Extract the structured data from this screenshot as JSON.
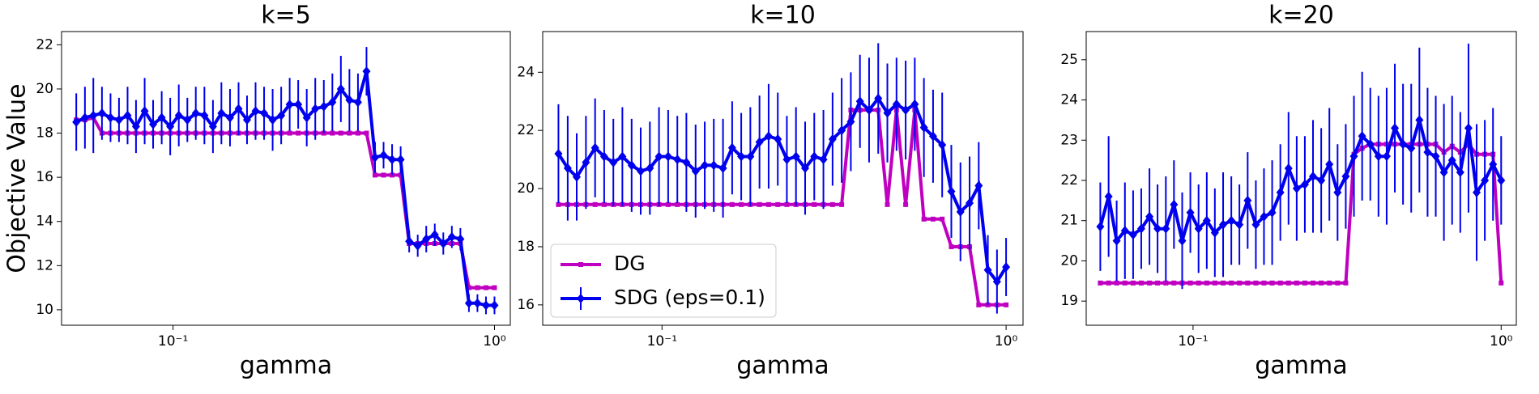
{
  "chart_data": [
    {
      "type": "line",
      "title": "k=5",
      "xlabel": "gamma",
      "ylabel": "Objective Value",
      "xscale": "log",
      "x": [
        0.05,
        0.0532,
        0.0565,
        0.0601,
        0.0639,
        0.0679,
        0.0722,
        0.0767,
        0.0816,
        0.0867,
        0.0922,
        0.098,
        0.1042,
        0.1108,
        0.1177,
        0.1252,
        0.1331,
        0.1414,
        0.1504,
        0.1599,
        0.1699,
        0.1806,
        0.192,
        0.2041,
        0.217,
        0.2306,
        0.2451,
        0.2606,
        0.277,
        0.2945,
        0.3131,
        0.3328,
        0.3538,
        0.3761,
        0.3998,
        0.425,
        0.4518,
        0.4803,
        0.5106,
        0.5428,
        0.577,
        0.6134,
        0.652,
        0.6931,
        0.7368,
        0.7833,
        0.8327,
        0.8851,
        0.9409,
        1.0
      ],
      "xlim": [
        0.045,
        1.12
      ],
      "xticks": [
        {
          "value": 0.1,
          "label": "10⁻¹"
        },
        {
          "value": 1,
          "label": "10⁰"
        }
      ],
      "ylim": [
        9.3,
        22.6
      ],
      "yticks": [
        10,
        12,
        14,
        16,
        18,
        20,
        22
      ],
      "series": [
        {
          "color": "#c000c0",
          "marker": "square",
          "values": [
            18.6,
            18.6,
            18.7,
            18.0,
            18.0,
            18.0,
            18.0,
            18.0,
            18.0,
            18.0,
            18.0,
            18.0,
            18.0,
            18.0,
            18.0,
            18.0,
            18.0,
            18.0,
            18.0,
            18.0,
            18.0,
            18.0,
            18.0,
            18.0,
            18.0,
            18.0,
            18.0,
            18.0,
            18.0,
            18.0,
            18.0,
            18.0,
            18.0,
            18.0,
            18.0,
            16.1,
            16.1,
            16.1,
            16.1,
            13.0,
            13.0,
            13.0,
            13.0,
            13.0,
            13.0,
            13.0,
            11.0,
            11.0,
            11.0,
            11.0
          ]
        },
        {
          "color": "#0000ee",
          "marker": "diamond",
          "values": [
            18.5,
            18.7,
            18.8,
            18.9,
            18.7,
            18.6,
            18.8,
            18.3,
            19.0,
            18.4,
            18.7,
            18.3,
            18.8,
            18.6,
            18.9,
            18.8,
            18.3,
            18.9,
            18.7,
            19.1,
            18.6,
            19.0,
            18.9,
            18.6,
            18.8,
            19.3,
            19.3,
            18.7,
            19.1,
            19.2,
            19.4,
            20.0,
            19.5,
            19.4,
            20.8,
            16.9,
            17.0,
            16.8,
            16.8,
            13.1,
            12.9,
            13.2,
            13.4,
            13.0,
            13.3,
            13.2,
            10.3,
            10.3,
            10.2,
            10.2
          ],
          "errors": [
            1.3,
            1.4,
            1.7,
            1.2,
            1.1,
            1.0,
            1.3,
            1.2,
            1.5,
            1.1,
            1.2,
            1.3,
            1.4,
            1.0,
            1.2,
            1.3,
            1.2,
            1.4,
            1.3,
            1.2,
            1.1,
            1.3,
            1.2,
            1.4,
            1.3,
            1.2,
            1.1,
            1.3,
            1.4,
            1.2,
            1.3,
            1.5,
            1.4,
            1.3,
            1.1,
            0.7,
            0.6,
            0.7,
            0.6,
            0.5,
            0.5,
            0.6,
            0.5,
            0.5,
            0.5,
            0.5,
            0.4,
            0.4,
            0.4,
            0.4
          ]
        }
      ]
    },
    {
      "type": "line",
      "title": "k=10",
      "xlabel": "gamma",
      "xscale": "log",
      "legend": "lower left",
      "x": [
        0.05,
        0.0532,
        0.0565,
        0.0601,
        0.0639,
        0.0679,
        0.0722,
        0.0767,
        0.0816,
        0.0867,
        0.0922,
        0.098,
        0.1042,
        0.1108,
        0.1177,
        0.1252,
        0.1331,
        0.1414,
        0.1504,
        0.1599,
        0.1699,
        0.1806,
        0.192,
        0.2041,
        0.217,
        0.2306,
        0.2451,
        0.2606,
        0.277,
        0.2945,
        0.3131,
        0.3328,
        0.3538,
        0.3761,
        0.3998,
        0.425,
        0.4518,
        0.4803,
        0.5106,
        0.5428,
        0.577,
        0.6134,
        0.652,
        0.6931,
        0.7368,
        0.7833,
        0.8327,
        0.8851,
        0.9409,
        1.0
      ],
      "xlim": [
        0.045,
        1.12
      ],
      "xticks": [
        {
          "value": 0.1,
          "label": "10⁻¹"
        },
        {
          "value": 1,
          "label": "10⁰"
        }
      ],
      "ylim": [
        15.3,
        25.4
      ],
      "yticks": [
        16,
        18,
        20,
        22,
        24
      ],
      "series": [
        {
          "name": "DG",
          "color": "#c000c0",
          "marker": "square",
          "values": [
            19.45,
            19.45,
            19.45,
            19.45,
            19.45,
            19.45,
            19.45,
            19.45,
            19.45,
            19.45,
            19.45,
            19.45,
            19.45,
            19.45,
            19.45,
            19.45,
            19.45,
            19.45,
            19.45,
            19.45,
            19.45,
            19.45,
            19.45,
            19.45,
            19.45,
            19.45,
            19.45,
            19.45,
            19.45,
            19.45,
            19.45,
            19.45,
            22.7,
            22.7,
            22.7,
            22.7,
            19.45,
            22.7,
            19.45,
            22.7,
            18.95,
            18.95,
            18.95,
            18.0,
            18.0,
            18.0,
            16.0,
            16.0,
            16.0,
            16.0
          ]
        },
        {
          "name": "SDG (eps=0.1)",
          "color": "#0000ee",
          "marker": "diamond",
          "values": [
            21.2,
            20.7,
            20.4,
            20.9,
            21.4,
            21.1,
            20.9,
            21.1,
            20.8,
            20.6,
            20.7,
            21.1,
            21.1,
            21.0,
            20.9,
            20.6,
            20.8,
            20.8,
            20.7,
            21.4,
            21.1,
            21.1,
            21.6,
            21.8,
            21.7,
            21.0,
            21.1,
            20.7,
            21.1,
            21.0,
            21.7,
            22.0,
            22.3,
            23.0,
            22.7,
            23.1,
            22.6,
            22.9,
            22.7,
            22.9,
            22.1,
            21.8,
            21.5,
            19.9,
            19.2,
            19.5,
            20.1,
            17.2,
            16.8,
            17.3
          ],
          "errors": [
            1.7,
            1.8,
            1.5,
            1.6,
            1.7,
            1.6,
            1.5,
            1.7,
            1.6,
            1.5,
            1.6,
            1.7,
            1.6,
            1.5,
            1.7,
            1.6,
            1.5,
            1.6,
            1.7,
            1.6,
            1.5,
            1.7,
            1.6,
            1.8,
            1.6,
            1.5,
            1.7,
            1.6,
            1.5,
            1.7,
            1.6,
            1.8,
            1.7,
            1.6,
            1.8,
            1.9,
            1.7,
            1.6,
            1.7,
            1.6,
            1.7,
            1.6,
            1.8,
            1.6,
            1.7,
            1.6,
            1.5,
            1.2,
            1.1,
            1.0
          ]
        }
      ]
    },
    {
      "type": "line",
      "title": "k=20",
      "xlabel": "gamma",
      "xscale": "log",
      "x": [
        0.05,
        0.0532,
        0.0565,
        0.0601,
        0.0639,
        0.0679,
        0.0722,
        0.0767,
        0.0816,
        0.0867,
        0.0922,
        0.098,
        0.1042,
        0.1108,
        0.1177,
        0.1252,
        0.1331,
        0.1414,
        0.1504,
        0.1599,
        0.1699,
        0.1806,
        0.192,
        0.2041,
        0.217,
        0.2306,
        0.2451,
        0.2606,
        0.277,
        0.2945,
        0.3131,
        0.3328,
        0.3538,
        0.3761,
        0.3998,
        0.425,
        0.4518,
        0.4803,
        0.5106,
        0.5428,
        0.577,
        0.6134,
        0.652,
        0.6931,
        0.7368,
        0.7833,
        0.8327,
        0.8851,
        0.9409,
        1.0
      ],
      "xlim": [
        0.045,
        1.12
      ],
      "xticks": [
        {
          "value": 0.1,
          "label": "10⁻¹"
        },
        {
          "value": 1,
          "label": "10⁰"
        }
      ],
      "ylim": [
        18.4,
        25.7
      ],
      "yticks": [
        19,
        20,
        21,
        22,
        23,
        24,
        25
      ],
      "series": [
        {
          "color": "#c000c0",
          "marker": "square",
          "values": [
            19.45,
            19.45,
            19.45,
            19.45,
            19.45,
            19.45,
            19.45,
            19.45,
            19.45,
            19.45,
            19.45,
            19.45,
            19.45,
            19.45,
            19.45,
            19.45,
            19.45,
            19.45,
            19.45,
            19.45,
            19.45,
            19.45,
            19.45,
            19.45,
            19.45,
            19.45,
            19.45,
            19.45,
            19.45,
            19.45,
            19.45,
            22.65,
            22.8,
            22.9,
            22.9,
            22.9,
            22.9,
            22.9,
            22.9,
            22.9,
            22.9,
            22.9,
            22.7,
            22.85,
            22.7,
            22.9,
            22.65,
            22.65,
            22.65,
            19.45
          ]
        },
        {
          "color": "#0000ee",
          "marker": "diamond",
          "values": [
            20.85,
            21.6,
            20.5,
            20.75,
            20.65,
            20.8,
            21.1,
            20.8,
            20.8,
            21.4,
            20.5,
            21.2,
            20.8,
            21.0,
            20.7,
            20.9,
            21.0,
            20.9,
            21.5,
            20.9,
            21.1,
            21.2,
            21.7,
            22.3,
            21.8,
            21.9,
            22.1,
            22.0,
            22.4,
            21.7,
            22.1,
            22.6,
            23.1,
            22.9,
            22.6,
            22.6,
            23.3,
            22.9,
            22.8,
            23.5,
            22.7,
            22.6,
            22.2,
            22.5,
            22.2,
            23.3,
            21.7,
            22.0,
            22.4,
            22.0
          ],
          "errors": [
            1.1,
            1.5,
            1.0,
            1.2,
            1.1,
            1.0,
            1.2,
            1.1,
            1.3,
            1.1,
            1.2,
            1.0,
            1.1,
            1.2,
            1.1,
            1.3,
            1.1,
            1.0,
            1.2,
            1.1,
            1.2,
            1.3,
            1.2,
            1.4,
            1.3,
            1.2,
            1.4,
            1.3,
            1.4,
            1.2,
            1.3,
            1.5,
            1.6,
            1.4,
            1.5,
            1.7,
            1.6,
            1.5,
            1.6,
            1.8,
            1.6,
            1.5,
            1.7,
            1.6,
            1.5,
            2.1,
            1.7,
            1.5,
            1.4,
            1.1
          ]
        }
      ]
    }
  ]
}
